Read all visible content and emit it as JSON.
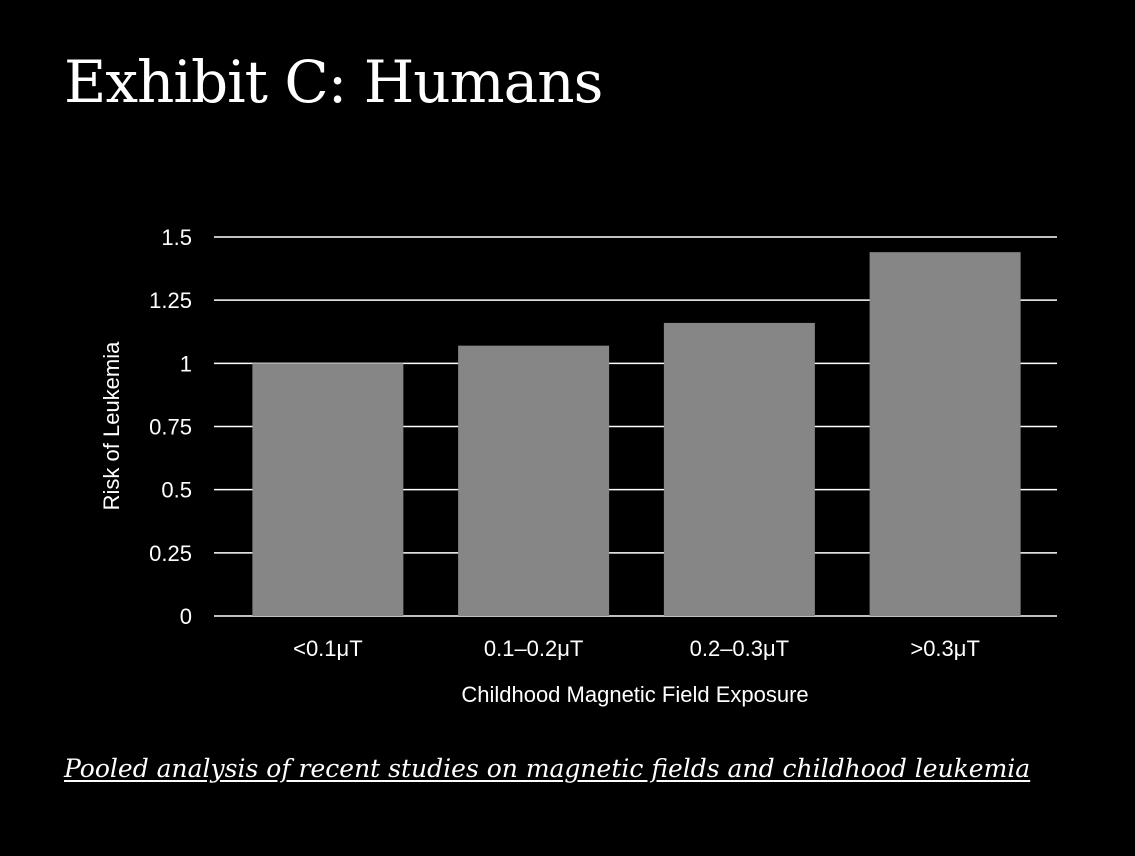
{
  "slide": {
    "title": "Exhibit C: Humans",
    "source_link": "Pooled analysis of recent studies on magnetic fields and childhood leukemia"
  },
  "colors": {
    "background": "#000000",
    "text": "#ffffff",
    "bar": "#868686",
    "gridline": "#ffffff"
  },
  "chart_data": {
    "type": "bar",
    "categories": [
      "<0.1μT",
      "0.1–0.2μT",
      "0.2–0.3μT",
      ">0.3μT"
    ],
    "values": [
      1.0,
      1.07,
      1.16,
      1.44
    ],
    "xlabel": "Childhood Magnetic Field Exposure",
    "ylabel": "Risk of Leukemia",
    "ylim": [
      0,
      1.5
    ],
    "yticks": [
      0,
      0.25,
      0.5,
      0.75,
      1,
      1.25,
      1.5
    ],
    "ytick_labels": [
      "0",
      "0.25",
      "0.5",
      "0.75",
      "1",
      "1.25",
      "1.5"
    ],
    "grid": true,
    "legend": "none"
  }
}
